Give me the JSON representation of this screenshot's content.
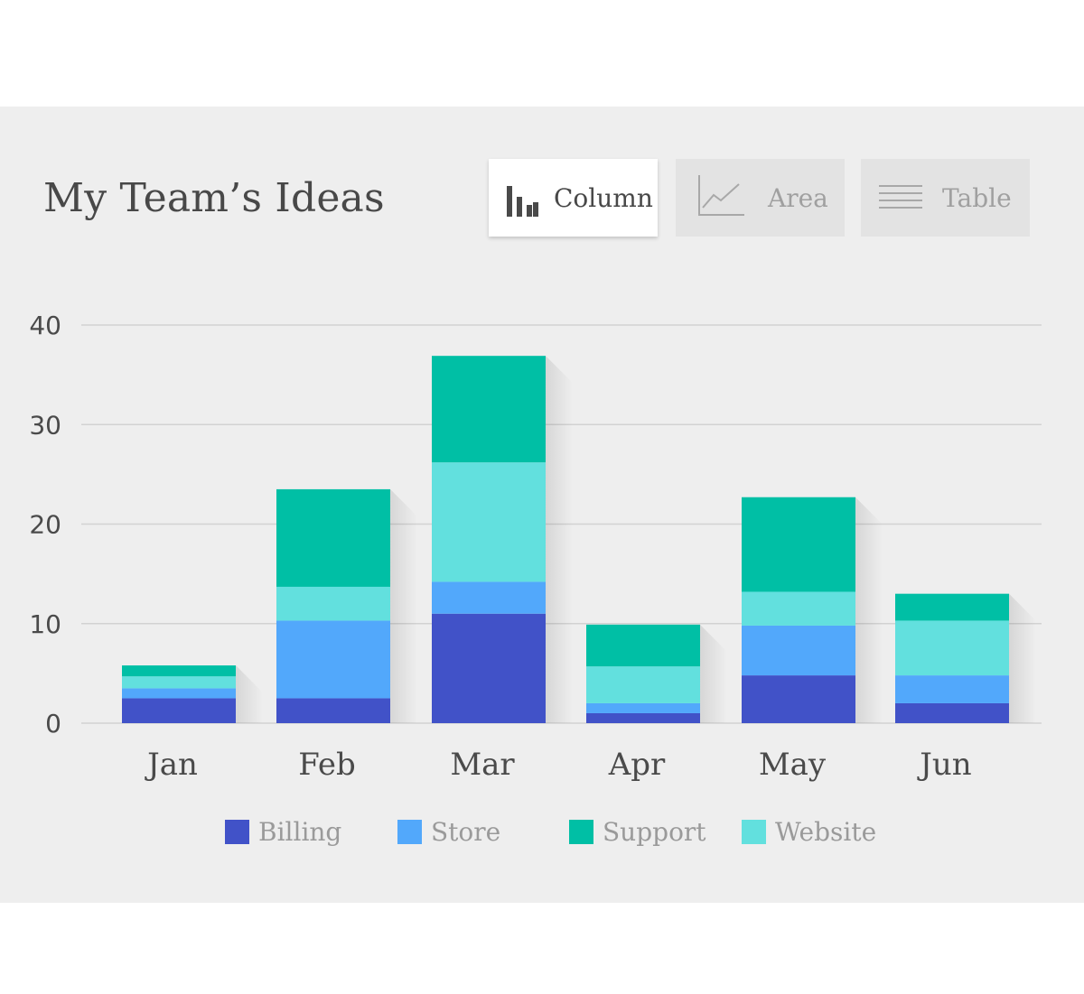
{
  "title": "My Team’s Ideas",
  "tabs": [
    {
      "label": "Column",
      "icon": "bar-chart-icon",
      "active": true
    },
    {
      "label": "Area",
      "icon": "line-chart-icon",
      "active": false
    },
    {
      "label": "Table",
      "icon": "table-lines-icon",
      "active": false
    }
  ],
  "colors": {
    "Billing": "#4152c8",
    "Store": "#52a8fb",
    "Support": "#00bfa5",
    "Website": "#62e0de",
    "grid": "#d2d2d2",
    "axis_text": "#4a4a4a"
  },
  "legend": {
    "items": [
      "Billing",
      "Store",
      "Support",
      "Website"
    ]
  },
  "chart_data": {
    "type": "bar",
    "stacked": true,
    "categories": [
      "Jan",
      "Feb",
      "Mar",
      "Apr",
      "May",
      "Jun"
    ],
    "series": [
      {
        "name": "Billing",
        "values": [
          2.5,
          2.5,
          11,
          1,
          4.8,
          2
        ]
      },
      {
        "name": "Store",
        "values": [
          1,
          7.8,
          3.2,
          1,
          5,
          2.8
        ]
      },
      {
        "name": "Website",
        "values": [
          1.2,
          3.4,
          12,
          3.7,
          3.4,
          5.5
        ]
      },
      {
        "name": "Support",
        "values": [
          1.1,
          9.8,
          10.7,
          4.2,
          9.5,
          2.7
        ]
      }
    ],
    "yticks": [
      0,
      10,
      20,
      30,
      40
    ],
    "ylim": [
      0,
      40
    ],
    "xlabel": "",
    "ylabel": "",
    "grid": true,
    "legend_position": "bottom"
  }
}
